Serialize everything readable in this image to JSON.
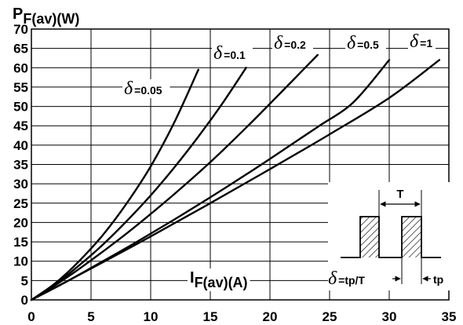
{
  "chart_data": {
    "type": "line",
    "ylabel": {
      "main": "P",
      "sub": "F(av)(W)"
    },
    "xlabel": {
      "main": "I",
      "sub": "F(av)(A)"
    },
    "xlim": [
      0,
      35
    ],
    "ylim": [
      0,
      70
    ],
    "x_ticks": [
      "0",
      "5",
      "10",
      "15",
      "20",
      "25",
      "30",
      "35"
    ],
    "y_ticks": [
      "0",
      "5",
      "10",
      "15",
      "20",
      "25",
      "30",
      "35",
      "40",
      "45",
      "50",
      "55",
      "60",
      "65",
      "70"
    ],
    "grid": true,
    "series": [
      {
        "name": "δ=0.05",
        "delta": "δ",
        "label": "=0.05",
        "x": [
          0,
          2,
          4,
          6,
          8,
          10,
          12,
          14
        ],
        "y": [
          0,
          4.3,
          10,
          16.8,
          25,
          34.5,
          46,
          59.5
        ]
      },
      {
        "name": "δ=0.1",
        "delta": "δ",
        "label": "=0.1",
        "x": [
          0,
          2,
          4,
          6,
          8,
          10,
          12,
          14,
          16,
          18
        ],
        "y": [
          0,
          4,
          8.9,
          14.3,
          20.4,
          27,
          34.3,
          42.2,
          50.7,
          60
        ]
      },
      {
        "name": "δ=0.2",
        "delta": "δ",
        "label": "=0.2",
        "x": [
          0,
          2,
          4,
          6,
          8,
          10,
          12,
          14,
          16,
          18,
          20,
          22,
          24
        ],
        "y": [
          0,
          3.8,
          8,
          12.5,
          17.2,
          22.2,
          27.4,
          32.8,
          38.5,
          44.5,
          50.7,
          57,
          63.3
        ]
      },
      {
        "name": "δ=0.5",
        "delta": "δ",
        "label": "=0.5",
        "x": [
          0,
          3,
          6,
          9,
          12,
          15,
          18,
          21,
          24,
          27,
          30
        ],
        "y": [
          0,
          4.8,
          10,
          15.3,
          20.8,
          26.5,
          32.4,
          38.5,
          44.7,
          51.1,
          62
        ]
      },
      {
        "name": "δ=1",
        "delta": "δ",
        "label": "=1",
        "x": [
          0,
          5,
          10,
          15,
          20,
          25,
          30,
          34.2
        ],
        "y": [
          0,
          8.1,
          16.4,
          25,
          33.8,
          42.8,
          52.2,
          62
        ]
      }
    ],
    "inset": {
      "period_label": "T",
      "pulse_label": "tp",
      "formula_delta": "δ",
      "formula_label": "=tp/T"
    }
  }
}
